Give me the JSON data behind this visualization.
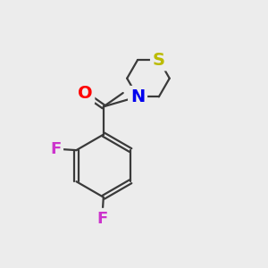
{
  "background_color": "#ececec",
  "bond_color": "#3a3a3a",
  "bond_width": 1.6,
  "atom_colors": {
    "O": "#ff0000",
    "N": "#0000ee",
    "S": "#bbbb00",
    "F": "#cc33cc"
  },
  "font_size": 14
}
